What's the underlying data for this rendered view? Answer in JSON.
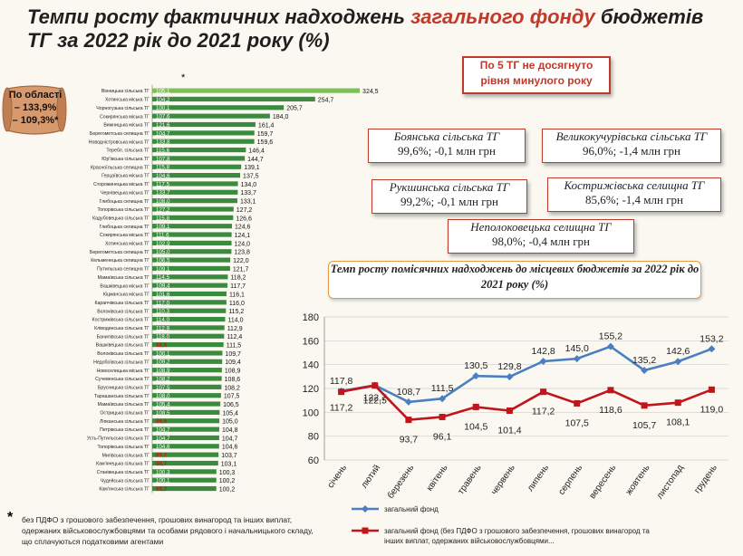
{
  "title": {
    "part1": "Темпи росту фактичних надходжень ",
    "highlight": "загального фонду",
    "part2": " бюджетів ТГ за  2022 рік до 2021 року (%)"
  },
  "region": {
    "line1": "По області",
    "line2": "– 133,9%",
    "line3": "– 109,3%*"
  },
  "star_mark": "*",
  "callout_header": "По 5 ТГ не досягнуто рівня минулого року",
  "callouts": [
    {
      "name": "Боянська сільська ТГ",
      "value": "99,6%; -0,1 млн грн"
    },
    {
      "name": "Великокучурівська  сільська ТГ",
      "value": "96,0%; -1,4 млн грн"
    },
    {
      "name": "Рукшинська сільська ТГ",
      "value": "99,2%;  -0,1 млн грн"
    },
    {
      "name": "Кострижівська селищна ТГ",
      "value": "85,6%; -1,4 млн грн"
    },
    {
      "name": "Неполоковецька     селищна ТГ",
      "value": "98,0%;  -0,4 млн грн"
    }
  ],
  "footnote": {
    "star": "*",
    "text": "без ПДФО з грошового забезпечення, грошових винагород та інших виплат, одержаних військовослужбовцями  та особами рядового і начальницького складу, що сплачуються податковими агентами"
  },
  "colors": {
    "bar": "#3a8a3f",
    "bar_highlight": "#7fbf5a",
    "line_total": "#4a7fc1",
    "line_excl": "#c0151b",
    "accent": "#c0392b"
  },
  "chart_data": [
    {
      "type": "bar",
      "orientation": "horizontal",
      "categories": [
        "Вінницька сільська ТГ",
        "Хотинська міська ТГ",
        "Чорногузька сільська ТГ",
        "Сокирянська міська ТГ",
        "Вижницька міська ТГ",
        "Берегометська селищна ТГ",
        "Новодністровська міська ТГ",
        "Теребл. сільська ТГ",
        "Юр'ївська сільська ТГ",
        "Красноїльська селищна ТГ",
        "Герцаївська міська ТГ",
        "Сторожинецька міська ТГ",
        "Чернівецька міська ТГ",
        "Глибоцька селищна ТГ",
        "Топорівська сільська ТГ",
        "Кадубовецька сільська ТГ",
        "Глибоцька селищна ТГ",
        "Сокирянська міська ТГ",
        "Хотинська міська ТГ",
        "Берегометська селищна ТГ",
        "Кельменецька селищна ТГ",
        "Путильська селищна ТГ",
        "Мамаївська сільська ТГ",
        "Вашківецька міська ТГ",
        "Кіцманська міська ТГ",
        "Карапчівська сільська ТГ",
        "Волоківська сільська ТГ",
        "Кострижівська сільська ТГ",
        "Кліводинська сільська ТГ",
        "Банилівська сільська ТГ",
        "Вашківецька сільська ТГ",
        "Волоківська сільська ТГ",
        "Недобоївська сільська ТГ",
        "Новоселицька міська ТГ",
        "Сучевенська сільська ТГ",
        "Брусницька сільська ТГ",
        "Тарашанська сільська ТГ",
        "Мамаївська сільська ТГ",
        "Острицька сільська ТГ",
        "Ліпканська сільська ТГ",
        "Петрівська сільська ТГ",
        "Усть-Путильська сільська ТГ",
        "Топорівська сільська ТГ",
        "Мигівська сільська ТГ",
        "Кам'янецька сільська ТГ",
        "Станівецька сільська ТГ",
        "Чудейська сільська ТГ",
        "Кам'янська сільська ТГ"
      ],
      "values": [
        324.5,
        254.7,
        205.7,
        184.0,
        161.4,
        159.7,
        159.6,
        146.4,
        144.7,
        139.1,
        137.5,
        134.0,
        133.7,
        133.1,
        127.2,
        126.6,
        124.6,
        124.1,
        124.0,
        123.8,
        122.0,
        121.7,
        118.2,
        117.7,
        116.1,
        116.0,
        115.2,
        114.0,
        112.9,
        112.4,
        111.5,
        109.7,
        109.4,
        108.9,
        108.6,
        108.2,
        107.5,
        106.5,
        105.4,
        105.0,
        104.8,
        104.7,
        104.6,
        103.7,
        103.1,
        100.3,
        100.2,
        100.2
      ],
      "secondary_values": [
        "105,1",
        "104,2",
        "100,1",
        "107,6",
        "121,6",
        "104,7",
        "133,8",
        "115,6",
        "107,8",
        "115,8",
        "104,6",
        "117,5",
        "133,7",
        "108,0",
        "127,2",
        "115,8",
        "109,1",
        "111,6",
        "102,9",
        "105,0",
        "106,5",
        "109,1",
        "114,5",
        "109,4",
        "101,6",
        "117,0",
        "110,3",
        "114,0",
        "112,9",
        "118,0",
        "98,8",
        "100,1",
        "109,2",
        "108,9",
        "108,2",
        "107,5",
        "108,0",
        "105,4",
        "108,5",
        "96,6",
        "104,7",
        "104,7",
        "104,6",
        "89,2",
        "98,7",
        "100,3",
        "100,1",
        "99,2"
      ],
      "secondary_red": [
        false,
        false,
        false,
        false,
        false,
        false,
        false,
        false,
        false,
        false,
        false,
        false,
        false,
        false,
        false,
        false,
        false,
        false,
        false,
        false,
        false,
        false,
        false,
        false,
        false,
        false,
        false,
        false,
        false,
        false,
        true,
        false,
        false,
        false,
        false,
        false,
        false,
        false,
        false,
        true,
        false,
        false,
        false,
        true,
        true,
        false,
        false,
        true
      ],
      "xlim": [
        0,
        340
      ]
    },
    {
      "type": "line",
      "title": "Темп росту помісячних надходжень до місцевих бюджетів за 2022 рік до 2021 року (%)",
      "categories": [
        "січень",
        "лютий",
        "березень",
        "квітень",
        "травень",
        "червень",
        "липень",
        "серпень",
        "вересень",
        "жовтень",
        "листопад",
        "грудень"
      ],
      "series": [
        {
          "name": "загальний фонд",
          "values": [
            117.8,
            122.7,
            108.7,
            111.5,
            130.5,
            129.8,
            142.8,
            145.0,
            155.2,
            135.2,
            142.6,
            153.2
          ]
        },
        {
          "name": "загальний фонд (без ПДФО з грошового забезпечення, грошових винагород та інших виплат, одержаних військовослужбовцями...",
          "values": [
            117.2,
            122.5,
            93.7,
            96.1,
            104.5,
            101.4,
            117.2,
            107.5,
            118.6,
            105.7,
            108.1,
            119.0
          ]
        }
      ],
      "ylim": [
        60,
        180
      ],
      "yticks": [
        "60",
        "80",
        "100",
        "120",
        "140",
        "160",
        "180"
      ],
      "labels_total": [
        "117,8",
        "122,7",
        "108,7",
        "111,5",
        "130,5",
        "129,8",
        "142,8",
        "145,0",
        "155,2",
        "135,2",
        "142,6",
        "153,2"
      ],
      "labels_excl": [
        "117,2",
        "122,5",
        "93,7",
        "96,1",
        "104,5",
        "101,4",
        "117,2",
        "107,5",
        "118,6",
        "105,7",
        "108,1",
        "119,0"
      ]
    }
  ]
}
